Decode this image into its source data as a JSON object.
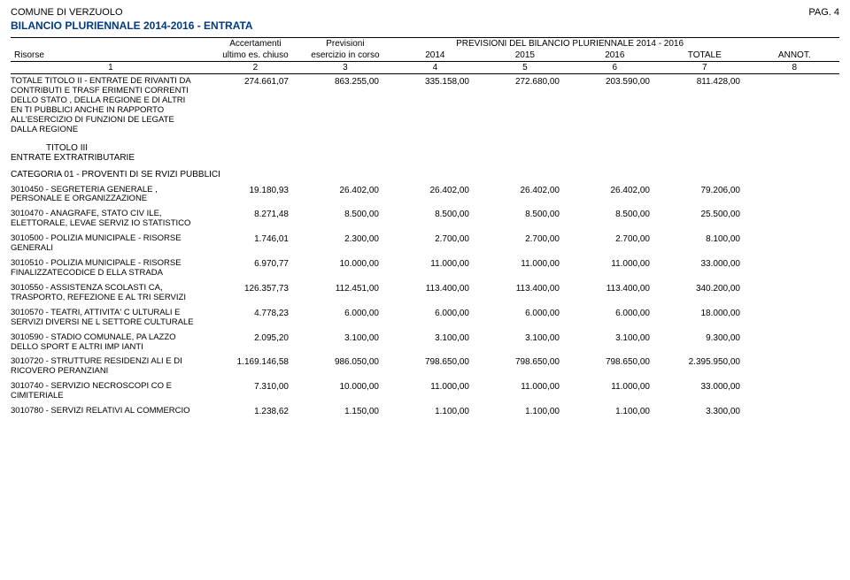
{
  "header": {
    "org": "COMUNE DI VERZUOLO",
    "page": "PAG. 4",
    "title": "BILANCIO PLURIENNALE 2014-2016   - ENTRATA"
  },
  "columns": {
    "risorse": "Risorse",
    "accert_l1": "Accertamenti",
    "accert_l2": "ultimo es. chiuso",
    "prev_l1": "Previsioni",
    "prev_l2": "esercizio in corso",
    "group": "PREVISIONI DEL BILANCIO PLURIENNALE          2014 - 2016",
    "y2014": "2014",
    "y2015": "2015",
    "y2016": "2016",
    "totale": "TOTALE",
    "annot": "ANNOT.",
    "n": [
      "1",
      "2",
      "3",
      "4",
      "5",
      "6",
      "7",
      "8"
    ]
  },
  "section_titolo3": "TITOLO III",
  "section_titolo3_sub": "ENTRATE EXTRATRIBUTARIE",
  "categoria": "CATEGORIA 01 - PROVENTI DI SE RVIZI PUBBLICI",
  "rows": [
    {
      "desc": "TOTALE TITOLO II - ENTRATE DE RIVANTI DA CONTRIBUTI E TRASF ERIMENTI CORRENTI DELLO STATO , DELLA REGIONE E DI ALTRI EN TI PUBBLICI ANCHE IN RAPPORTO ALL'ESERCIZIO DI FUNZIONI DE LEGATE DALLA REGIONE",
      "c": [
        "274.661,07",
        "863.255,00",
        "335.158,00",
        "272.680,00",
        "203.590,00",
        "811.428,00"
      ]
    },
    {
      "desc": "3010450 - SEGRETERIA GENERALE , PERSONALE E ORGANIZZAZIONE",
      "c": [
        "19.180,93",
        "26.402,00",
        "26.402,00",
        "26.402,00",
        "26.402,00",
        "79.206,00"
      ]
    },
    {
      "desc": "3010470 - ANAGRAFE, STATO CIV ILE, ELETTORALE, LEVAE SERVIZ IO STATISTICO",
      "c": [
        "8.271,48",
        "8.500,00",
        "8.500,00",
        "8.500,00",
        "8.500,00",
        "25.500,00"
      ]
    },
    {
      "desc": "3010500 - POLIZIA MUNICIPALE - RISORSE GENERALI",
      "c": [
        "1.746,01",
        "2.300,00",
        "2.700,00",
        "2.700,00",
        "2.700,00",
        "8.100,00"
      ]
    },
    {
      "desc": "3010510 - POLIZIA MUNICIPALE - RISORSE FINALIZZATECODICE D ELLA STRADA",
      "c": [
        "6.970,77",
        "10.000,00",
        "11.000,00",
        "11.000,00",
        "11.000,00",
        "33.000,00"
      ]
    },
    {
      "desc": "3010550 - ASSISTENZA SCOLASTI CA, TRASPORTO, REFEZIONE E AL TRI SERVIZI",
      "c": [
        "126.357,73",
        "112.451,00",
        "113.400,00",
        "113.400,00",
        "113.400,00",
        "340.200,00"
      ]
    },
    {
      "desc": "3010570 - TEATRI, ATTIVITA' C ULTURALI E SERVIZI DIVERSI NE L SETTORE CULTURALE",
      "c": [
        "4.778,23",
        "6.000,00",
        "6.000,00",
        "6.000,00",
        "6.000,00",
        "18.000,00"
      ]
    },
    {
      "desc": "3010590 - STADIO COMUNALE, PA LAZZO DELLO SPORT E ALTRI IMP IANTI",
      "c": [
        "2.095,20",
        "3.100,00",
        "3.100,00",
        "3.100,00",
        "3.100,00",
        "9.300,00"
      ]
    },
    {
      "desc": "3010720 - STRUTTURE RESIDENZI ALI E DI RICOVERO PERANZIANI",
      "c": [
        "1.169.146,58",
        "986.050,00",
        "798.650,00",
        "798.650,00",
        "798.650,00",
        "2.395.950,00"
      ]
    },
    {
      "desc": "3010740 - SERVIZIO NECROSCOPI CO E CIMITERIALE",
      "c": [
        "7.310,00",
        "10.000,00",
        "11.000,00",
        "11.000,00",
        "11.000,00",
        "33.000,00"
      ]
    },
    {
      "desc": "3010780 - SERVIZI RELATIVI AL COMMERCIO",
      "c": [
        "1.238,62",
        "1.150,00",
        "1.100,00",
        "1.100,00",
        "1.100,00",
        "3.300,00"
      ]
    }
  ]
}
